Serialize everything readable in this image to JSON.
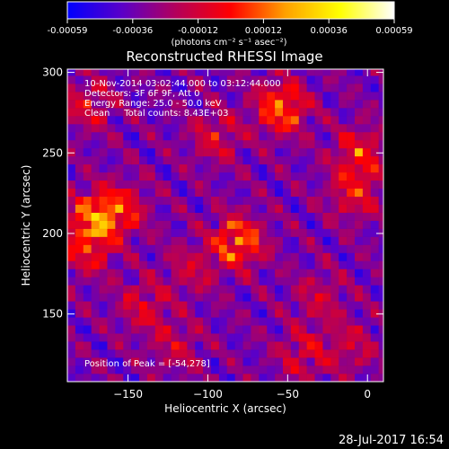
{
  "chart_data": {
    "type": "heatmap",
    "title": "Reconstructed RHESSI Image",
    "xlabel": "Heliocentric X (arcsec)",
    "ylabel": "Heliocentric Y (arcsec)",
    "xlim": [
      -188,
      10
    ],
    "ylim": [
      108,
      302
    ],
    "xticks": [
      -150,
      -100,
      -50,
      0
    ],
    "yticks": [
      150,
      200,
      250,
      300
    ],
    "colorbar": {
      "ticks": [
        "-0.00059",
        "-0.00036",
        "-0.00012",
        "0.00012",
        "0.00036",
        "0.00059"
      ],
      "range": [
        -0.00059,
        0.00059
      ],
      "unit_label": "(photons cm⁻² s⁻¹ asec⁻²)",
      "colormap": [
        "#0000ff",
        "#5a00c8",
        "#b4005a",
        "#ff0000",
        "#ffa000",
        "#ffff00",
        "#ffffff"
      ]
    },
    "info_lines": [
      "10-Nov-2014 03:02:44.000 to 03:12:44.000",
      "Detectors: 3F 6F 9F, Att 0",
      "Energy Range: 25.0 - 50.0 keV",
      "Clean     Total counts: 8.43E+03"
    ],
    "peak_label": "Position of Peak = [-54,278]",
    "peak": [
      -54,
      278
    ],
    "sources": [
      {
        "x": -81,
        "y": 195,
        "intensity": 0.00059
      },
      {
        "x": -54,
        "y": 278,
        "intensity": 0.00059
      },
      {
        "x": -172,
        "y": 210,
        "intensity": 0.0005
      },
      {
        "x": -155,
        "y": 215,
        "intensity": 0.00042
      },
      {
        "x": -175,
        "y": 190,
        "intensity": 0.00036
      },
      {
        "x": -8,
        "y": 225,
        "intensity": 0.00036
      },
      {
        "x": -5,
        "y": 250,
        "intensity": 0.0004
      },
      {
        "x": -95,
        "y": 260,
        "intensity": 0.0003
      },
      {
        "x": -140,
        "y": 155,
        "intensity": 0.0003
      },
      {
        "x": -120,
        "y": 130,
        "intensity": 0.00024
      },
      {
        "x": -40,
        "y": 125,
        "intensity": 0.0003
      },
      {
        "x": -10,
        "y": 130,
        "intensity": 0.00024
      },
      {
        "x": -175,
        "y": 280,
        "intensity": 0.0003
      },
      {
        "x": -30,
        "y": 160,
        "intensity": 0.00024
      },
      {
        "x": -110,
        "y": 178,
        "intensity": 0.00024
      }
    ],
    "noise_minimum": -0.00059
  },
  "timestamp": "28-Jul-2017 16:54"
}
